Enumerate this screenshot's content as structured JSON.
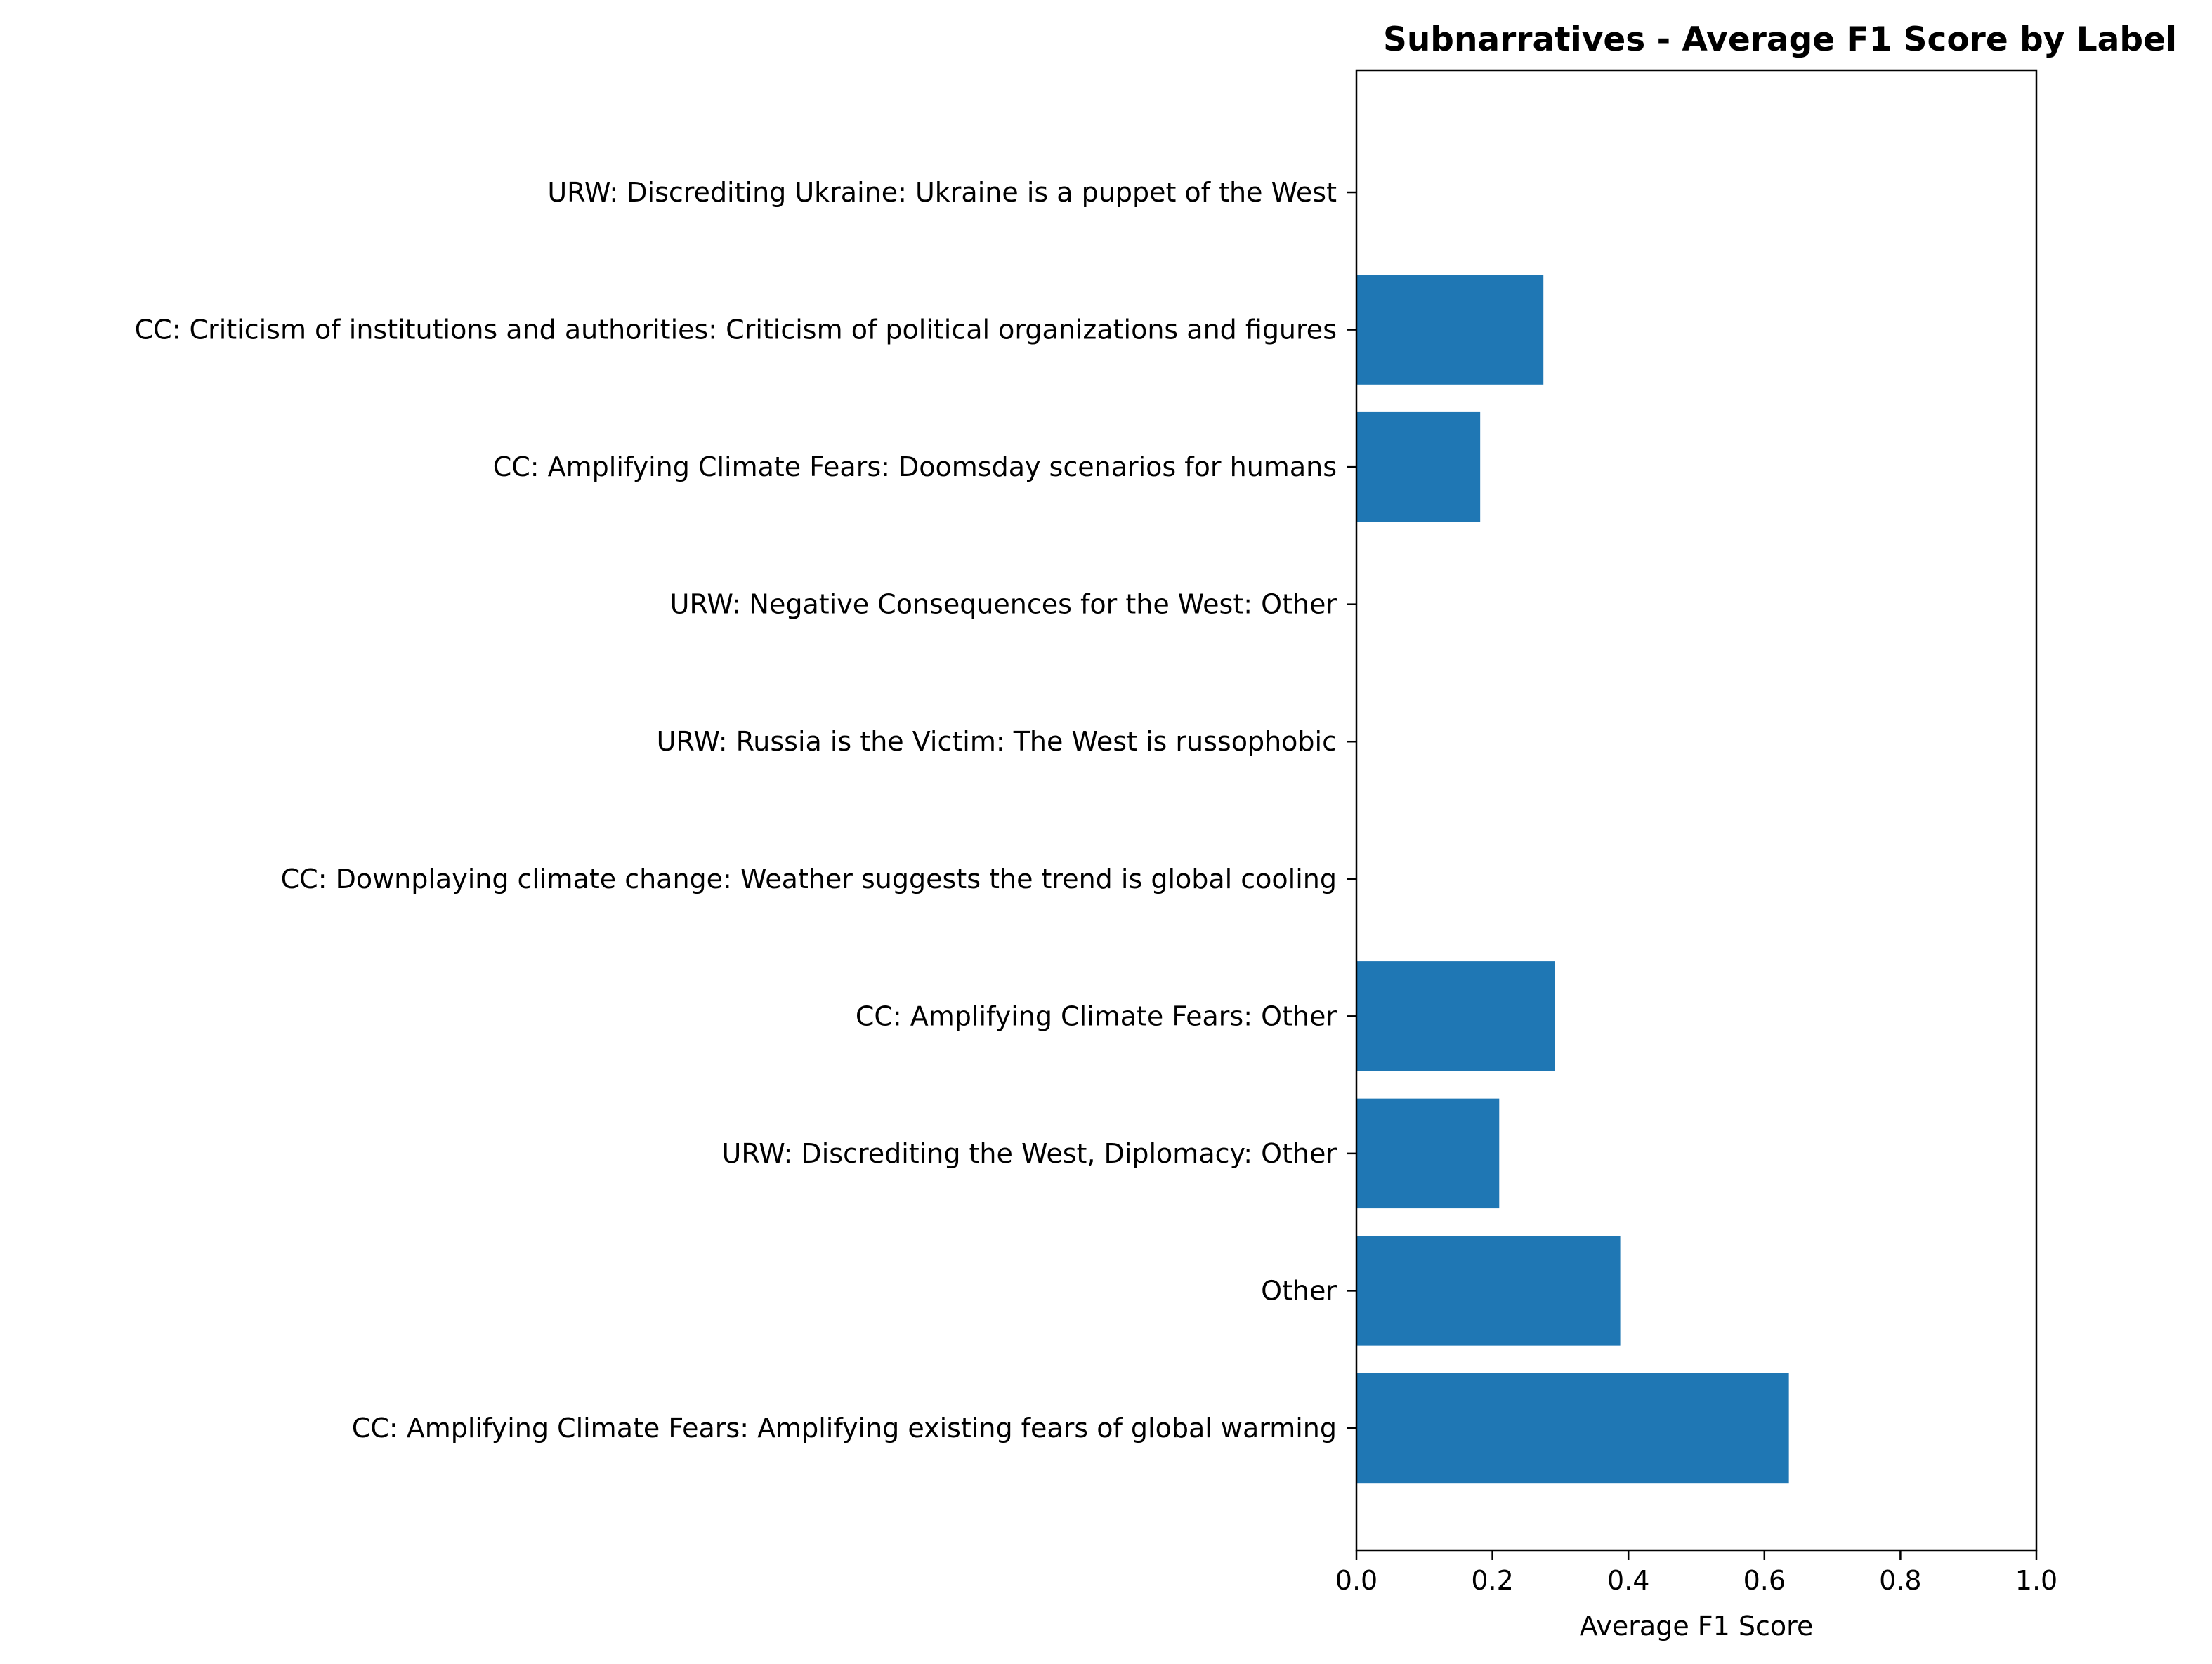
{
  "chart_data": {
    "type": "bar",
    "orientation": "horizontal",
    "title": "Subnarratives - Average F1 Score by Label",
    "xlabel": "Average F1 Score",
    "ylabel": "",
    "xlim": [
      0,
      1
    ],
    "xticks": [
      "0.0",
      "0.2",
      "0.4",
      "0.6",
      "0.8",
      "1.0"
    ],
    "grid": false,
    "bar_color": "#1f77b4",
    "categories": [
      "CC: Amplifying Climate Fears: Amplifying existing fears of global warming",
      "Other",
      "URW: Discrediting the West, Diplomacy: Other",
      "CC: Amplifying Climate Fears: Other",
      "CC: Downplaying climate change: Weather suggests the trend is global cooling",
      "URW: Russia is the Victim: The West is russophobic",
      "URW: Negative Consequences for the West: Other",
      "CC: Amplifying Climate Fears: Doomsday scenarios for humans",
      "CC: Criticism of institutions and authorities: Criticism of political organizations and figures",
      "URW: Discrediting Ukraine: Ukraine is a puppet of the West"
    ],
    "values": [
      0.636,
      0.388,
      0.21,
      0.292,
      0.0,
      0.0,
      0.0,
      0.182,
      0.275,
      0.0
    ]
  }
}
